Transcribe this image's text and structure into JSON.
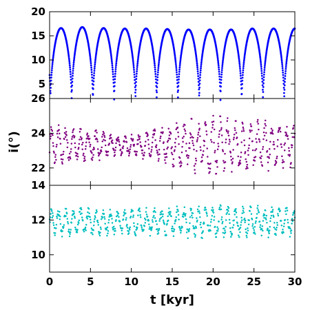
{
  "chart_data": {
    "type": "scatter",
    "xlabel": "t [kyr]",
    "ylabel": "i(°)",
    "x_range": [
      0,
      30
    ],
    "x_ticks": [
      "0",
      "5",
      "10",
      "15",
      "20",
      "25",
      "30"
    ],
    "shared_x": true,
    "grid": false,
    "panels": [
      {
        "ylim": [
          2,
          20
        ],
        "y_ticks": [
          "5",
          "10",
          "15",
          "20"
        ],
        "color": "#0000ff",
        "series": {
          "kind": "periodic-arches",
          "period_kyr": 2.6,
          "first_minimum_kyr": 0.1,
          "peak_values": [
            16.5,
            16.6,
            16.8,
            16.6,
            16.5,
            16.5,
            16.4,
            16.3,
            16.3,
            16.3,
            16.5,
            16.5
          ],
          "minimum_values": [
            2.5,
            1.4,
            1.5,
            1.3,
            1.6,
            1.3,
            1.5,
            1.4,
            1.6,
            1.4,
            1.6,
            1.4
          ]
        }
      },
      {
        "ylim": [
          21,
          26
        ],
        "y_ticks": [
          "22",
          "24",
          "26"
        ],
        "color": "#800080",
        "series": {
          "kind": "oscillating-scatter",
          "center": 23.3,
          "period_kyr": 0.9,
          "amplitude_envelope": {
            "x": [
              0,
              5,
              9,
              12,
              16,
              20,
              25,
              30
            ],
            "y": [
              0.9,
              0.7,
              0.4,
              0.6,
              1.0,
              1.3,
              1.1,
              0.9
            ]
          }
        }
      },
      {
        "ylim": [
          9,
          14
        ],
        "y_ticks": [
          "10",
          "12",
          "14"
        ],
        "color": "#00bfbf",
        "series": {
          "kind": "oscillating-scatter",
          "center": 11.9,
          "period_kyr": 0.9,
          "amplitude_envelope": {
            "x": [
              0,
              10,
              20,
              30
            ],
            "y": [
              0.6,
              0.55,
              0.7,
              0.6
            ]
          }
        }
      }
    ]
  }
}
